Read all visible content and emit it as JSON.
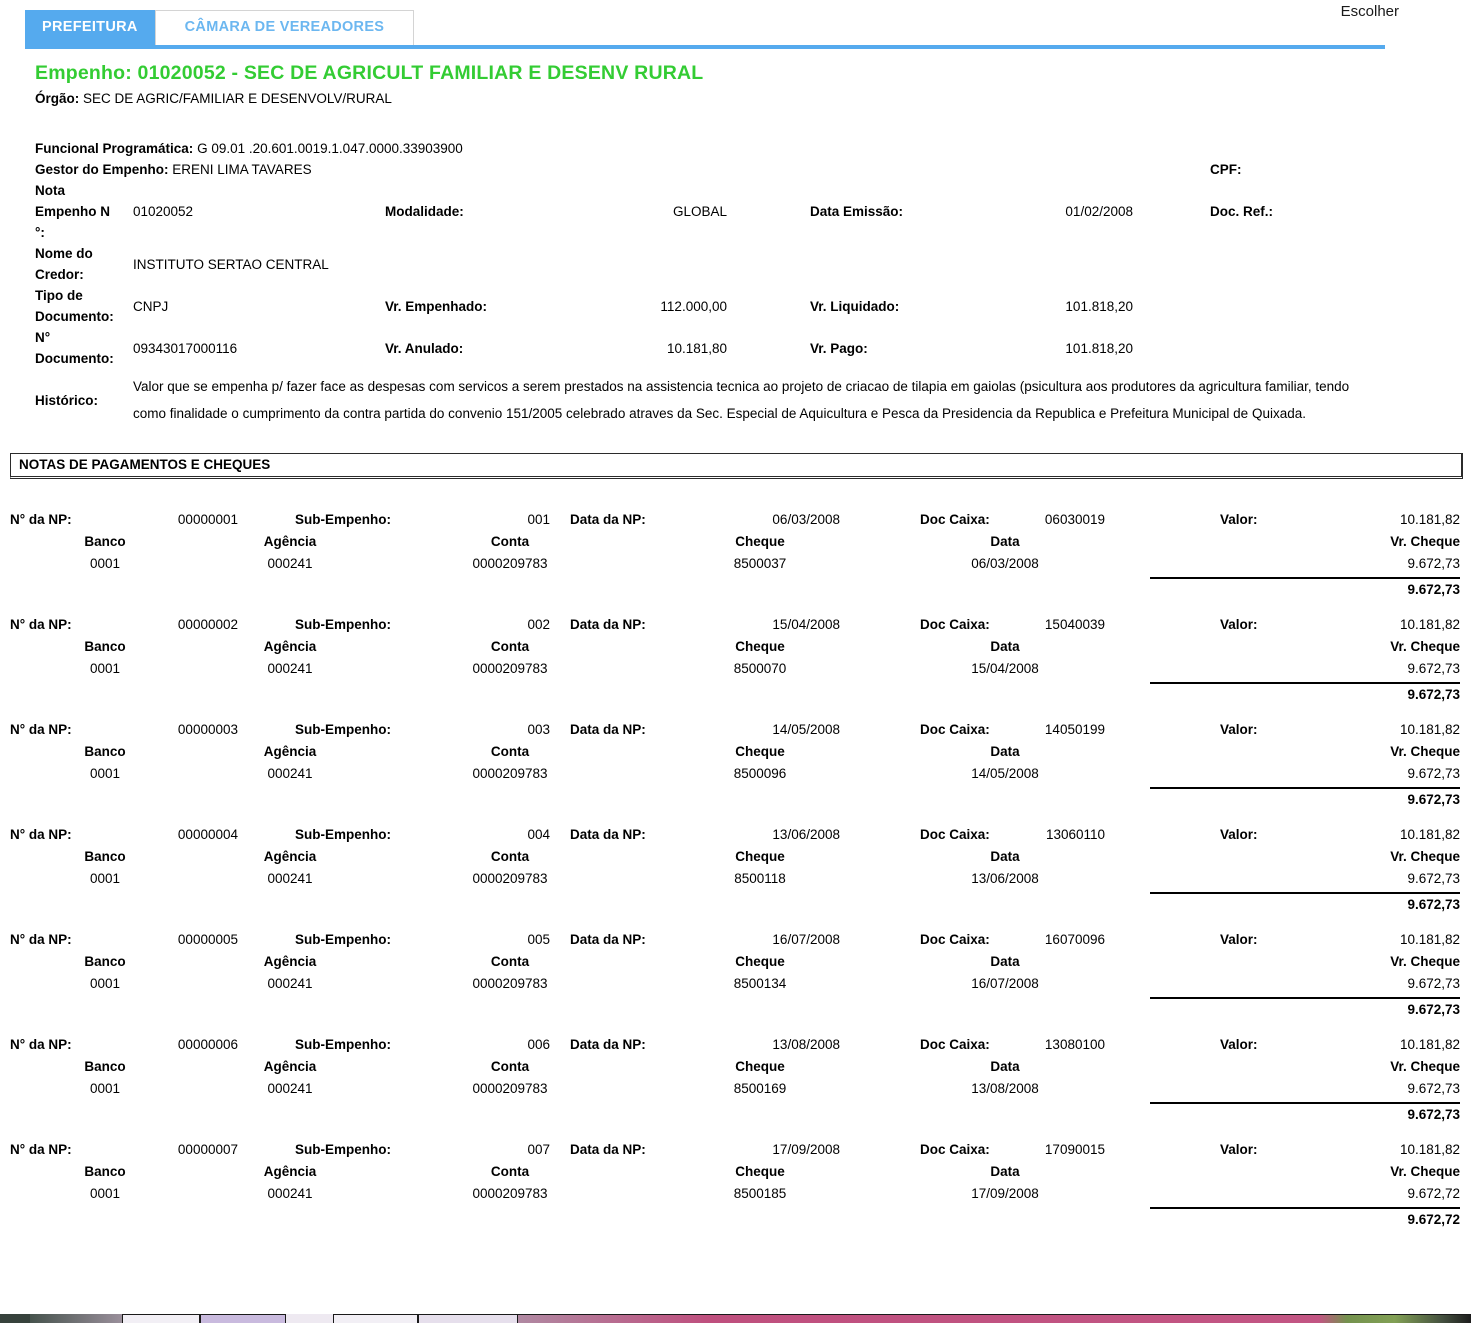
{
  "colors": {
    "accent_blue": "#55aaee",
    "tab_inactive_text": "#6cb7f0",
    "title_green": "#33cc33"
  },
  "header": {
    "escolher_label": "Escolher",
    "tabs": [
      {
        "label": "PREFEITURA",
        "active": true
      },
      {
        "label": "CÂMARA DE VEREADORES",
        "active": false
      }
    ]
  },
  "empenho": {
    "title": "Empenho: 01020052 - SEC DE AGRICULT FAMILIAR E DESENV RURAL",
    "orgao_label": "Órgão:",
    "orgao": "SEC DE AGRIC/FAMILIAR E DESENVOLV/RURAL",
    "funcional_label": "Funcional Programática:",
    "funcional": "G 09.01 .20.601.0019.1.047.0000.33903900",
    "gestor_label": "Gestor do Empenho:",
    "gestor": "ERENI LIMA TAVARES",
    "cpf_label": "CPF:",
    "nota_label": "Nota\nEmpenho N\n°:",
    "nota_numero": "01020052",
    "modalidade_label": "Modalidade:",
    "modalidade": "GLOBAL",
    "data_emissao_label": "Data Emissão:",
    "data_emissao": "01/02/2008",
    "doc_ref_label": "Doc. Ref.:",
    "credor_label": "Nome do\nCredor:",
    "credor": "INSTITUTO SERTAO CENTRAL",
    "tipo_doc_label": "Tipo de\nDocumento:",
    "tipo_doc": "CNPJ",
    "vr_empenhado_label": "Vr. Empenhado:",
    "vr_empenhado": "112.000,00",
    "vr_liquidado_label": "Vr. Liquidado:",
    "vr_liquidado": "101.818,20",
    "num_doc_label": "N°\nDocumento:",
    "num_doc": "09343017000116",
    "vr_anulado_label": "Vr. Anulado:",
    "vr_anulado": "10.181,80",
    "vr_pago_label": "Vr. Pago:",
    "vr_pago": "101.818,20",
    "historico_label": "Histórico:",
    "historico": "Valor que se empenha p/ fazer face as despesas com servicos a serem prestados na assistencia tecnica ao projeto de criacao de tilapia em gaiolas (psicultura aos produtores da agricultura familiar, tendo como finalidade o cumprimento da contra partida do convenio 151/2005 celebrado atraves da Sec. Especial de Aquicultura e Pesca da Presidencia da Republica e Prefeitura Municipal de Quixada."
  },
  "section": {
    "title": "NOTAS DE PAGAMENTOS E CHEQUES"
  },
  "labels": {
    "np": "N° da NP:",
    "sub": "Sub-Empenho:",
    "data_np": "Data da NP:",
    "doc_caixa": "Doc Caixa:",
    "valor": "Valor:",
    "banco": "Banco",
    "agencia": "Agência",
    "conta": "Conta",
    "cheque": "Cheque",
    "data": "Data",
    "vr_cheque": "Vr. Cheque"
  },
  "payments": [
    {
      "np": "00000001",
      "sub": "001",
      "data_np": "06/03/2008",
      "doc_caixa": "06030019",
      "valor": "10.181,82",
      "banco": "0001",
      "agencia": "000241",
      "conta": "0000209783",
      "cheque": "8500037",
      "data": "06/03/2008",
      "vr_cheque": "9.672,73",
      "total": "9.672,73"
    },
    {
      "np": "00000002",
      "sub": "002",
      "data_np": "15/04/2008",
      "doc_caixa": "15040039",
      "valor": "10.181,82",
      "banco": "0001",
      "agencia": "000241",
      "conta": "0000209783",
      "cheque": "8500070",
      "data": "15/04/2008",
      "vr_cheque": "9.672,73",
      "total": "9.672,73"
    },
    {
      "np": "00000003",
      "sub": "003",
      "data_np": "14/05/2008",
      "doc_caixa": "14050199",
      "valor": "10.181,82",
      "banco": "0001",
      "agencia": "000241",
      "conta": "0000209783",
      "cheque": "8500096",
      "data": "14/05/2008",
      "vr_cheque": "9.672,73",
      "total": "9.672,73"
    },
    {
      "np": "00000004",
      "sub": "004",
      "data_np": "13/06/2008",
      "doc_caixa": "13060110",
      "valor": "10.181,82",
      "banco": "0001",
      "agencia": "000241",
      "conta": "0000209783",
      "cheque": "8500118",
      "data": "13/06/2008",
      "vr_cheque": "9.672,73",
      "total": "9.672,73"
    },
    {
      "np": "00000005",
      "sub": "005",
      "data_np": "16/07/2008",
      "doc_caixa": "16070096",
      "valor": "10.181,82",
      "banco": "0001",
      "agencia": "000241",
      "conta": "0000209783",
      "cheque": "8500134",
      "data": "16/07/2008",
      "vr_cheque": "9.672,73",
      "total": "9.672,73"
    },
    {
      "np": "00000006",
      "sub": "006",
      "data_np": "13/08/2008",
      "doc_caixa": "13080100",
      "valor": "10.181,82",
      "banco": "0001",
      "agencia": "000241",
      "conta": "0000209783",
      "cheque": "8500169",
      "data": "13/08/2008",
      "vr_cheque": "9.672,73",
      "total": "9.672,73"
    },
    {
      "np": "00000007",
      "sub": "007",
      "data_np": "17/09/2008",
      "doc_caixa": "17090015",
      "valor": "10.181,82",
      "banco": "0001",
      "agencia": "000241",
      "conta": "0000209783",
      "cheque": "8500185",
      "data": "17/09/2008",
      "vr_cheque": "9.672,72",
      "total": "9.672,72"
    }
  ]
}
